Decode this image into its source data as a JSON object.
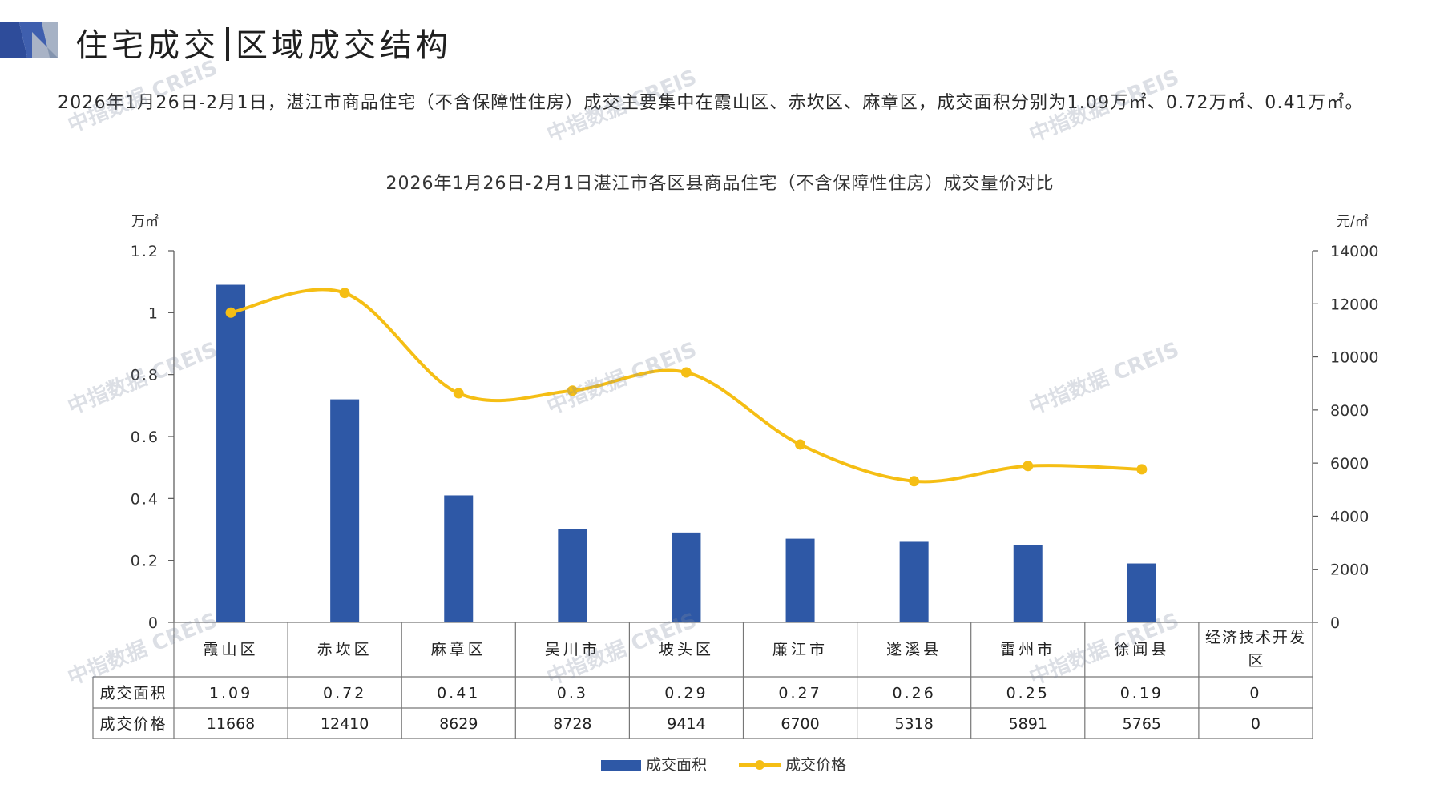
{
  "header": {
    "title_left": "住宅成交",
    "title_right": "区域成交结构"
  },
  "summary": "2026年1月26日-2月1日，湛江市商品住宅（不含保障性住房）成交主要集中在霞山区、赤坎区、麻章区，成交面积分别为1.09万㎡、0.72万㎡、0.41万㎡。",
  "watermark": "中指数据 CREIS",
  "colors": {
    "bar": "#2E58A6",
    "line": "#F5BE14",
    "axis": "#555555",
    "grid": "#888888"
  },
  "chart_data": {
    "type": "bar",
    "title": "2026年1月26日-2月1日湛江市各区县商品住宅（不含保障性住房）成交量价对比",
    "categories": [
      "霞山区",
      "赤坎区",
      "麻章区",
      "吴川市",
      "坡头区",
      "廉江市",
      "遂溪县",
      "雷州市",
      "徐闻县",
      "经济技术开发区"
    ],
    "y_left": {
      "unit": "万㎡",
      "range": [
        0,
        1.2
      ],
      "ticks": [
        "0",
        "0.2",
        "0.4",
        "0.6",
        "0.8",
        "1",
        "1.2"
      ]
    },
    "y_right": {
      "unit": "元/㎡",
      "range": [
        0,
        14000
      ],
      "ticks": [
        "0",
        "2000",
        "4000",
        "6000",
        "8000",
        "10000",
        "12000",
        "14000"
      ]
    },
    "series": [
      {
        "name": "成交面积",
        "type": "bar",
        "axis": "left",
        "values": [
          1.09,
          0.72,
          0.41,
          0.3,
          0.29,
          0.27,
          0.26,
          0.25,
          0.19,
          0
        ]
      },
      {
        "name": "成交价格",
        "type": "line",
        "axis": "right",
        "values": [
          11668,
          12410,
          8629,
          8728,
          9414,
          6700,
          5318,
          5891,
          5765,
          0
        ]
      }
    ],
    "table_rows": [
      {
        "label": "成交面积",
        "cells": [
          "1.09",
          "0.72",
          "0.41",
          "0.3",
          "0.29",
          "0.27",
          "0.26",
          "0.25",
          "0.19",
          "0"
        ]
      },
      {
        "label": "成交价格",
        "cells": [
          "11668",
          "12410",
          "8629",
          "8728",
          "9414",
          "6700",
          "5318",
          "5891",
          "5765",
          "0"
        ]
      }
    ],
    "legend": [
      "成交面积",
      "成交价格"
    ],
    "grid": false,
    "legend_position": "bottom"
  }
}
